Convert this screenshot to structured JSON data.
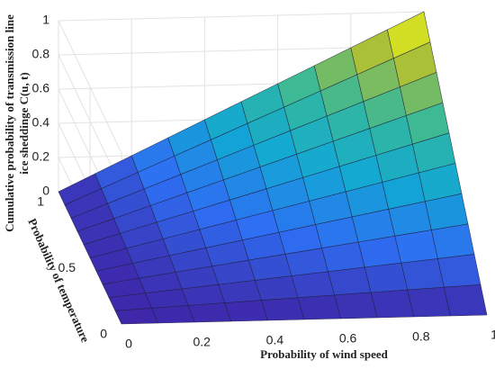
{
  "chart_data": {
    "type": "surface",
    "xlabel": "Probability of wind speed",
    "ylabel": "Probability of temperature",
    "zlabel": [
      "Cumulative probability of transmission line",
      "ice sheddinge C(u, t)"
    ],
    "x": [
      0,
      0.1,
      0.2,
      0.3,
      0.4,
      0.5,
      0.6,
      0.7,
      0.8,
      0.9,
      1
    ],
    "y": [
      0,
      0.1,
      0.2,
      0.3,
      0.4,
      0.5,
      0.6,
      0.7,
      0.8,
      0.9,
      1
    ],
    "z": [
      [
        0,
        0,
        0,
        0,
        0,
        0,
        0,
        0,
        0,
        0,
        0
      ],
      [
        0,
        0.01,
        0.02,
        0.03,
        0.04,
        0.05,
        0.06,
        0.07,
        0.08,
        0.09,
        0.1
      ],
      [
        0,
        0.02,
        0.04,
        0.06,
        0.08,
        0.1,
        0.12,
        0.14,
        0.16,
        0.18,
        0.2
      ],
      [
        0,
        0.03,
        0.06,
        0.09,
        0.12,
        0.15,
        0.18,
        0.21,
        0.24,
        0.27,
        0.3
      ],
      [
        0,
        0.04,
        0.08,
        0.12,
        0.16,
        0.2,
        0.24,
        0.28,
        0.32,
        0.36,
        0.4
      ],
      [
        0,
        0.05,
        0.1,
        0.15,
        0.2,
        0.25,
        0.3,
        0.35,
        0.4,
        0.45,
        0.5
      ],
      [
        0,
        0.06,
        0.12,
        0.18,
        0.24,
        0.3,
        0.36,
        0.42,
        0.48,
        0.54,
        0.6
      ],
      [
        0,
        0.07,
        0.14,
        0.21,
        0.28,
        0.35,
        0.42,
        0.49,
        0.56,
        0.63,
        0.7
      ],
      [
        0,
        0.08,
        0.16,
        0.24,
        0.32,
        0.4,
        0.48,
        0.56,
        0.64,
        0.72,
        0.8
      ],
      [
        0,
        0.09,
        0.18,
        0.27,
        0.36,
        0.45,
        0.54,
        0.63,
        0.72,
        0.81,
        0.9
      ],
      [
        0,
        0.1,
        0.2,
        0.3,
        0.4,
        0.5,
        0.6,
        0.7,
        0.8,
        0.9,
        1
      ]
    ],
    "xlim": [
      0,
      1
    ],
    "ylim": [
      0,
      1
    ],
    "zlim": [
      0,
      1
    ],
    "xticks": [
      0,
      0.2,
      0.4,
      0.6,
      0.8,
      1
    ],
    "yticks": [
      0,
      0.5,
      1
    ],
    "zticks": [
      0,
      0.2,
      0.4,
      0.6,
      0.8,
      1
    ],
    "colormap": "parula",
    "grid": true
  }
}
